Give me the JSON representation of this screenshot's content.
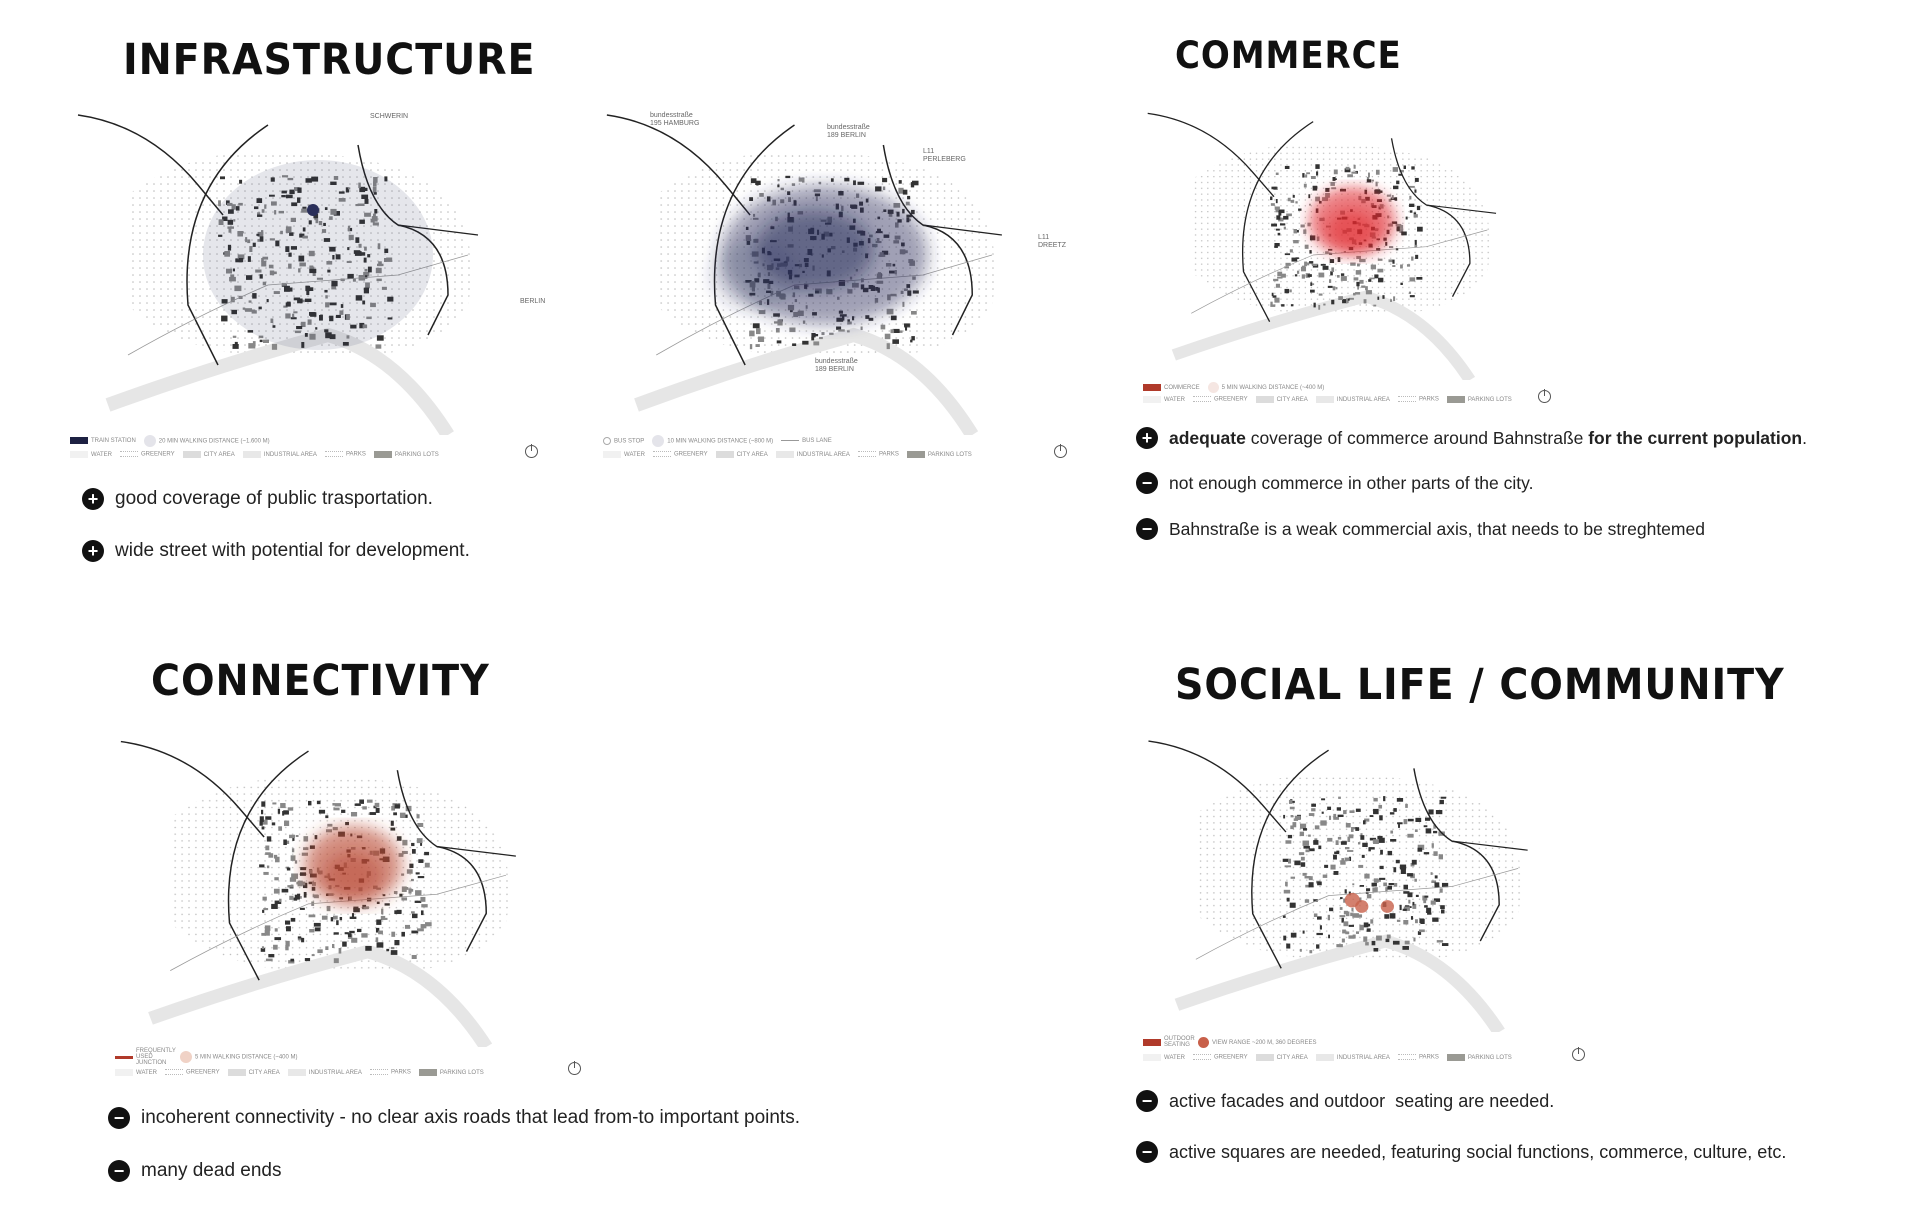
{
  "sections": {
    "infrastructure": {
      "title": "INFRASTRUCTURE",
      "map1": {
        "labels": [
          "SCHWERIN",
          "BERLIN"
        ],
        "legend": [
          "TRAIN STATION",
          "20 MIN WALKING DISTANCE (~1.600 M)"
        ],
        "overlay": "#2a2f5a"
      },
      "map2": {
        "labels": [
          "bundesstraße 195 HAMBURG",
          "bundesstraße 189 BERLIN",
          "L11 PERLEBERG",
          "L11 DREETZ",
          "bundesstraße 189 BERLIN"
        ],
        "legend": [
          "BUS STOP",
          "10 MIN WALKING DISTANCE (~800 M)",
          "BUS LANE"
        ],
        "overlay": "#2a2f5a"
      },
      "bullets": [
        {
          "icon": "plus",
          "text": "good coverage of public trasportation."
        },
        {
          "icon": "plus",
          "text": "wide street with potential for development."
        }
      ]
    },
    "commerce": {
      "title": "COMMERCE",
      "legend": [
        "COMMERCE",
        "5 MIN WALKING DISTANCE (~400 M)"
      ],
      "overlay": "#e0262b",
      "bullets": [
        {
          "icon": "plus",
          "bold1": "adequate",
          "text": " coverage of commerce around Bahnstraße ",
          "bold2": "for the current population",
          "end": "."
        },
        {
          "icon": "minus",
          "text": "not enough commerce in other parts of the city."
        },
        {
          "icon": "minus",
          "text": "Bahnstraße is a weak commercial axis, that needs to be streghtemed"
        }
      ]
    },
    "connectivity": {
      "title": "CONNECTIVITY",
      "legend": [
        "FREQUENTLY USED JUNCTION",
        "5 MIN WALKING DISTANCE (~400 M)"
      ],
      "overlay": "#b8432e",
      "bullets": [
        {
          "icon": "minus",
          "text": "incoherent connectivity - no clear axis roads that lead from-to important points."
        },
        {
          "icon": "minus",
          "text": "many dead ends"
        }
      ]
    },
    "social": {
      "title": "SOCIAL LIFE / COMMUNITY",
      "legend": [
        "OUTDOOR SEATING",
        "VIEW RANGE ~200 M, 360 DEGREES"
      ],
      "overlay": "#c8604a",
      "bullets": [
        {
          "icon": "minus",
          "text": "active facades and outdoor  seating are needed."
        },
        {
          "icon": "minus",
          "text": "active squares are needed, featuring social functions, commerce, culture, etc."
        }
      ]
    }
  },
  "common_legend": [
    "WATER",
    "GREENERY",
    "CITY AREA",
    "INDUSTRIAL AREA",
    "PARKS",
    "PARKING LOTS"
  ],
  "icons": {
    "plus": "+",
    "minus": "−"
  }
}
